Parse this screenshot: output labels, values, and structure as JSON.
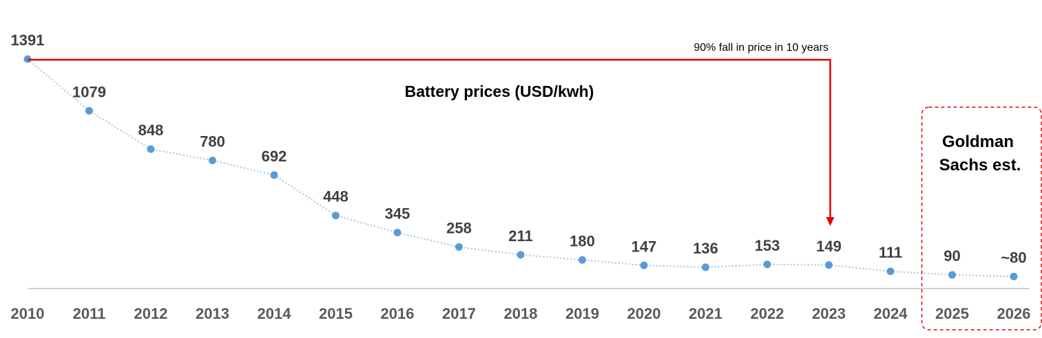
{
  "chart_data": {
    "type": "line",
    "title": "Battery prices (USD/kwh)",
    "categories": [
      "2010",
      "2011",
      "2012",
      "2013",
      "2014",
      "2015",
      "2016",
      "2017",
      "2018",
      "2019",
      "2020",
      "2021",
      "2022",
      "2023",
      "2024",
      "2025",
      "2026"
    ],
    "values": [
      1391,
      1079,
      848,
      780,
      692,
      448,
      345,
      258,
      211,
      180,
      147,
      136,
      153,
      149,
      111,
      90,
      80
    ],
    "data_labels": [
      "1391",
      "1079",
      "848",
      "780",
      "692",
      "448",
      "345",
      "258",
      "211",
      "180",
      "147",
      "136",
      "153",
      "149",
      "111",
      "90",
      "~80"
    ],
    "ylim": [
      0,
      1391
    ],
    "grid": false,
    "line_style": "dotted",
    "colors": {
      "series": "#5b9bd5",
      "annotation": "#e60000",
      "axis": "#bfbfbf"
    },
    "annotations": {
      "price_fall": {
        "text": "90% fall in price in 10 years",
        "from": "2010",
        "to": "2023"
      },
      "estimate": {
        "text_line1": "Goldman",
        "text_line2": "Sachs est.",
        "categories": [
          "2025",
          "2026"
        ]
      }
    }
  }
}
